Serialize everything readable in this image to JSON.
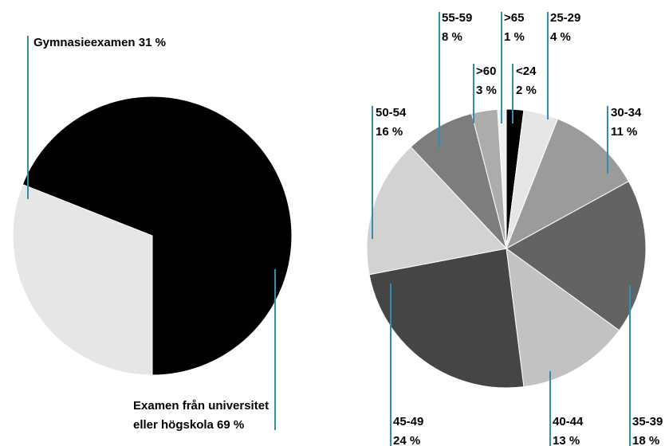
{
  "chart_data": [
    {
      "type": "pie",
      "title": "",
      "slices": [
        {
          "label": "Gymnasieexamen",
          "value": 31,
          "text": "Gymnasieexamen 31 %",
          "color": "#e6e6e6"
        },
        {
          "label": "Examen från universitet eller högskola",
          "value": 69,
          "text_line1": "Examen från universitet",
          "text_line2": "eller högskola 69 %",
          "color": "#000000"
        }
      ]
    },
    {
      "type": "pie",
      "title": "",
      "slices": [
        {
          "label": "<24",
          "value": 2,
          "pct": "2 %",
          "color": "#000000"
        },
        {
          "label": "25-29",
          "value": 4,
          "pct": "4 %",
          "color": "#e6e6e6"
        },
        {
          "label": "30-34",
          "value": 11,
          "pct": "11 %",
          "color": "#9b9b9b"
        },
        {
          "label": "35-39",
          "value": 18,
          "pct": "18 %",
          "color": "#636363"
        },
        {
          "label": "40-44",
          "value": 13,
          "pct": "13 %",
          "color": "#c2c2c2"
        },
        {
          "label": "45-49",
          "value": 24,
          "pct": "24 %",
          "color": "#454545"
        },
        {
          "label": "50-54",
          "value": 16,
          "pct": "16 %",
          "color": "#d2d2d2"
        },
        {
          "label": "55-59",
          "value": 8,
          "pct": "8 %",
          "color": "#7d7d7d"
        },
        {
          "label": ">60",
          "value": 3,
          "pct": "3 %",
          "color": "#acacac"
        },
        {
          "label": ">65",
          "value": 1,
          "pct": "1 %",
          "color": "#efefef"
        }
      ]
    }
  ]
}
